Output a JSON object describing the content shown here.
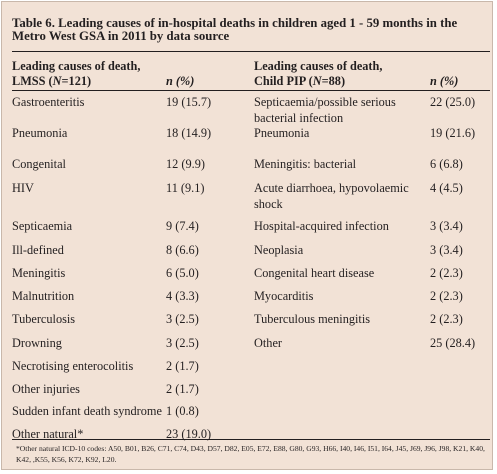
{
  "table": {
    "title": "Table 6. Leading causes of in-hospital deaths in children aged 1 - 59 months in the Metro West GSA in 2011 by data source",
    "headers": {
      "left_cause_line1": "Leading causes of death,",
      "left_cause_line2_pre": "LMSS (",
      "left_cause_line2_n": "N",
      "left_cause_line2_post": "=121)",
      "left_n": "n (%)",
      "right_cause_line1": "Leading causes of death,",
      "right_cause_line2_pre": "Child PIP (",
      "right_cause_line2_n": "N",
      "right_cause_line2_post": "=88)",
      "right_n": "n (%)"
    },
    "lmss_rows": [
      {
        "cause": "Gastroenteritis",
        "n": "19 (15.7)"
      },
      {
        "cause": "Pneumonia",
        "n": "18 (14.9)"
      },
      {
        "cause": "Congenital",
        "n": "12 (9.9)"
      },
      {
        "cause": "HIV",
        "n": "11 (9.1)"
      },
      {
        "cause": "Septicaemia",
        "n": "9 (7.4)"
      },
      {
        "cause": "Ill-defined",
        "n": "8 (6.6)"
      },
      {
        "cause": "Meningitis",
        "n": "6 (5.0)"
      },
      {
        "cause": "Malnutrition",
        "n": "4 (3.3)"
      },
      {
        "cause": "Tuberculosis",
        "n": "3 (2.5)"
      },
      {
        "cause": "Drowning",
        "n": "3 (2.5)"
      },
      {
        "cause": "Necrotising enterocolitis",
        "n": "2 (1.7)"
      },
      {
        "cause": "Other injuries",
        "n": "2 (1.7)"
      },
      {
        "cause": "Sudden infant death syndrome",
        "n": "1 (0.8)"
      },
      {
        "cause": "Other natural*",
        "n": "23 (19.0)"
      }
    ],
    "pip_rows": [
      {
        "cause_l1": "Septicaemia/possible serious",
        "cause_l2": "bacterial infection",
        "n": "22 (25.0)"
      },
      {
        "cause_l1": "Pneumonia",
        "cause_l2": "",
        "n": "19 (21.6)"
      },
      {
        "cause_l1": "Meningitis: bacterial",
        "cause_l2": "",
        "n": "6 (6.8)"
      },
      {
        "cause_l1": "Acute diarrhoea, hypovolaemic",
        "cause_l2": "shock",
        "n": "4 (4.5)"
      },
      {
        "cause_l1": "Hospital-acquired infection",
        "cause_l2": "",
        "n": "3 (3.4)"
      },
      {
        "cause_l1": "Neoplasia",
        "cause_l2": "",
        "n": "3 (3.4)"
      },
      {
        "cause_l1": "Congenital heart disease",
        "cause_l2": "",
        "n": "2 (2.3)"
      },
      {
        "cause_l1": "Myocarditis",
        "cause_l2": "",
        "n": "2 (2.3)"
      },
      {
        "cause_l1": "Tuberculous meningitis",
        "cause_l2": "",
        "n": "2 (2.3)"
      },
      {
        "cause_l1": "Other",
        "cause_l2": "",
        "n": "25 (28.4)"
      }
    ],
    "footnote": "*Other natural ICD-10 codes: A50, B01, B26, C71, C74, D43, D57, D82, E05, E72, E88, G80, G93, H66, I40, I46, I51, I64, J45, J69, J96, J98, K21, K40, K42, ,K55, K56, K72, K92, L20.",
    "colors": {
      "background": "#f2e2d6",
      "text": "#231f20",
      "rule": "#231f20"
    }
  }
}
